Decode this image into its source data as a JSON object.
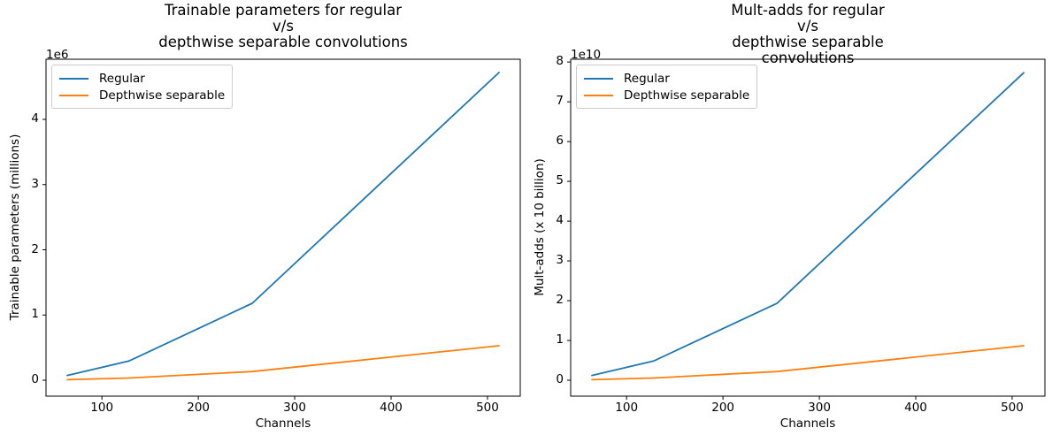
{
  "figure": {
    "background": "#ffffff",
    "text_color": "#000000",
    "spine_color": "#000000",
    "accent_blue": "#1f77b4",
    "accent_orange": "#ff7f0e"
  },
  "chart_data": [
    {
      "type": "line",
      "title": "Trainable parameters for regular\nv/s\ndepthwise separable convolutions",
      "xlabel": "Channels",
      "ylabel": "Trainable parameters (millions)",
      "y_axis_offset_label": "1e6",
      "x": [
        64,
        128,
        256,
        512
      ],
      "series": [
        {
          "name": "Regular",
          "color": "#1f77b4",
          "values": [
            73728,
            294912,
            1179648,
            4718592
          ]
        },
        {
          "name": "Depthwise separable",
          "color": "#ff7f0e",
          "values": [
            8768,
            33920,
            133376,
            528896
          ]
        }
      ],
      "xticks": [
        100,
        200,
        300,
        400,
        500
      ],
      "xtick_labels": [
        "100",
        "200",
        "300",
        "400",
        "500"
      ],
      "yticks": [
        0,
        1000000,
        2000000,
        3000000,
        4000000
      ],
      "ytick_labels": [
        "0",
        "1",
        "2",
        "3",
        "4"
      ],
      "xlim": [
        42,
        534
      ],
      "ylim": [
        -244000,
        4922000
      ],
      "grid": false,
      "legend": {
        "location": "upper left"
      }
    },
    {
      "type": "line",
      "title": "Mult-adds for regular\nv/s\ndepthwise separable convolutions",
      "xlabel": "Channels",
      "ylabel": "Mult-adds (x 10 billion)",
      "y_axis_offset_label": "1e10",
      "x": [
        64,
        128,
        256,
        512
      ],
      "series": [
        {
          "name": "Regular",
          "color": "#1f77b4",
          "values": [
            1207959552,
            4831838208,
            19327352832,
            77309411328
          ]
        },
        {
          "name": "Depthwise separable",
          "color": "#ff7f0e",
          "values": [
            143654912,
            555745280,
            2185232384,
            8665366528
          ]
        }
      ],
      "xticks": [
        100,
        200,
        300,
        400,
        500
      ],
      "xtick_labels": [
        "100",
        "200",
        "300",
        "400",
        "500"
      ],
      "yticks": [
        0,
        10000000000,
        20000000000,
        30000000000,
        40000000000,
        50000000000,
        60000000000,
        70000000000,
        80000000000
      ],
      "ytick_labels": [
        "0",
        "1",
        "2",
        "3",
        "4",
        "5",
        "6",
        "7",
        "8"
      ],
      "xlim": [
        42,
        534
      ],
      "ylim": [
        -4000000000,
        80700000000
      ],
      "grid": false,
      "legend": {
        "location": "upper left"
      }
    }
  ]
}
